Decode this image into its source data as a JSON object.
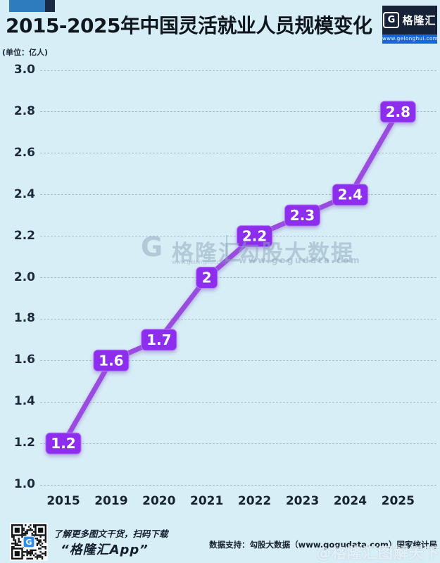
{
  "page": {
    "background": "#d8eef7"
  },
  "header": {
    "title": "2015-2025年中国灵活就业人员规模变化",
    "logo": {
      "glyph": "G",
      "name": "格隆汇",
      "url": "www.gelonghui.com"
    }
  },
  "unit_label": "(单位：亿人)",
  "chart_data": {
    "type": "line",
    "title": "2015-2025年中国灵活就业人员规模变化",
    "unit": "亿人",
    "categories": [
      "2015",
      "2019",
      "2020",
      "2021",
      "2022",
      "2023",
      "2024",
      "2025"
    ],
    "values": [
      1.2,
      1.6,
      1.7,
      2.0,
      2.2,
      2.3,
      2.4,
      2.8
    ],
    "point_labels": [
      "1.2",
      "1.6",
      "1.7",
      "2",
      "2.2",
      "2.3",
      "2.4",
      "2.8"
    ],
    "ylim": [
      1.0,
      3.0
    ],
    "ytick_labels": [
      "3.0",
      "2.8",
      "2.6",
      "2.4",
      "2.2",
      "2.0",
      "1.8",
      "1.6",
      "1.4",
      "1.2",
      "1.0"
    ],
    "grid": "horizontal-dashed",
    "legend": "none",
    "colors": {
      "line": "#9b4ce0",
      "label_box": "#8d2eef",
      "label_box_border": "#b179f2",
      "label_text": "#ffffff",
      "grid": "#a7bfca",
      "tick_text": "#1c2a3a"
    }
  },
  "watermark_center": {
    "logo_glyph": "G",
    "brand": "格隆汇",
    "partner": "勾股大数据",
    "brand_url": "www.gelonghui.com",
    "partner_url": "www.gogudata.com"
  },
  "footer": {
    "qr_caption_line1": "了解更多图文干货，扫码下载",
    "qr_caption_line2": "“格隆汇App”",
    "qr_center_glyph": "G",
    "data_support": "数据支持：勾股大数据（www.gogudata.com）国家统计局",
    "watermark": "@格隆汇图解天下"
  }
}
